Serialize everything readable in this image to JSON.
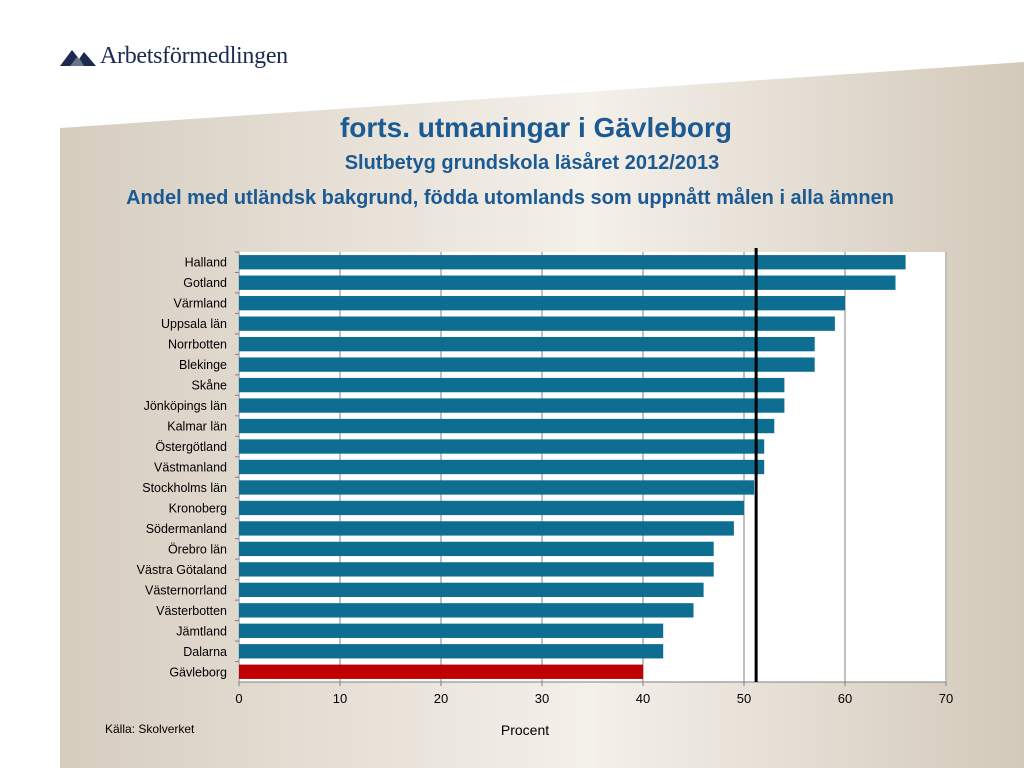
{
  "brand": {
    "name": "Arbetsförmedlingen",
    "logo_icon": "arbetsformedlingen-logo-icon"
  },
  "slide": {
    "title": "forts. utmaningar i Gävleborg",
    "subtitle": "Slutbetyg grundskola läsåret 2012/2013",
    "subtitle2": "Andel med utländsk bakgrund, födda utomlands som uppnått målen i alla ämnen",
    "source": "Källa: Skolverket"
  },
  "chart_data": {
    "type": "bar",
    "orientation": "horizontal",
    "categories": [
      "Halland",
      "Gotland",
      "Värmland",
      "Uppsala län",
      "Norrbotten",
      "Blekinge",
      "Skåne",
      "Jönköpings län",
      "Kalmar län",
      "Östergötland",
      "Västmanland",
      "Stockholms län",
      "Kronoberg",
      "Södermanland",
      "Örebro län",
      "Västra Götaland",
      "Västernorrland",
      "Västerbotten",
      "Jämtland",
      "Dalarna",
      "Gävleborg"
    ],
    "values": [
      66,
      65,
      60,
      59,
      57,
      57,
      54,
      54,
      53,
      52,
      52,
      51,
      50,
      49,
      47,
      47,
      46,
      45,
      42,
      42,
      40
    ],
    "highlight": "Gävleborg",
    "colors": {
      "bar": "#0e6e91",
      "highlight": "#c00000",
      "reference_line": "#000000",
      "grid": "#808080"
    },
    "reference_line_value": 51.2,
    "xlabel": "Procent",
    "ylabel": "",
    "xlim": [
      0,
      70
    ],
    "xticks": [
      0,
      10,
      20,
      30,
      40,
      50,
      60,
      70
    ],
    "grid": true
  }
}
